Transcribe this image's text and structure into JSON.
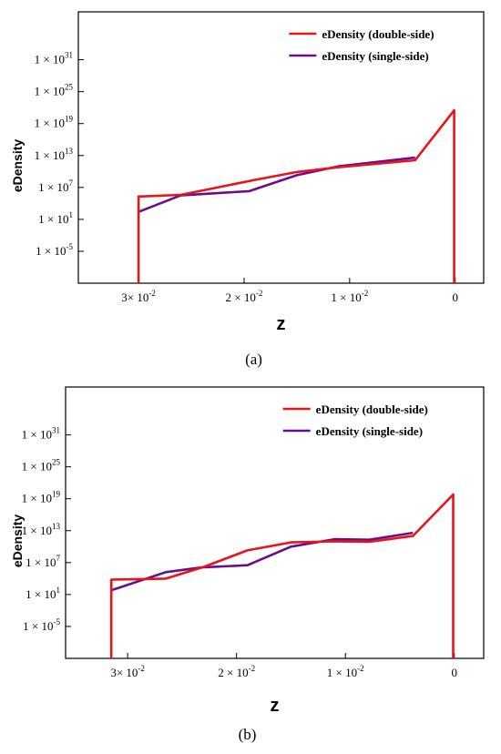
{
  "chart_data": [
    {
      "type": "line",
      "caption": "(a)",
      "xlabel": "z",
      "ylabel": "eDensity",
      "x_reversed": true,
      "y_scale": "log",
      "xlim": [
        0.0357,
        -0.0027
      ],
      "ylim_log10": [
        -11,
        40
      ],
      "xticks": [
        {
          "value": 0.03,
          "mant": "3× 10",
          "exp": "-2"
        },
        {
          "value": 0.02,
          "mant": "2 × 10",
          "exp": "-2"
        },
        {
          "value": 0.01,
          "mant": "1 × 10",
          "exp": "-2"
        },
        {
          "value": 0,
          "mant": "0",
          "exp": ""
        }
      ],
      "yticks": [
        {
          "log": 31,
          "mant": "1 × 10",
          "exp": "31"
        },
        {
          "log": 25,
          "mant": "1 × 10",
          "exp": "25"
        },
        {
          "log": 19,
          "mant": "1 × 10",
          "exp": "19"
        },
        {
          "log": 13,
          "mant": "1 × 10",
          "exp": "13"
        },
        {
          "log": 7,
          "mant": "1 × 10",
          "exp": "7"
        },
        {
          "log": 1,
          "mant": "1 × 10",
          "exp": "1"
        },
        {
          "log": -5,
          "mant": "1 × 10",
          "exp": "-5"
        }
      ],
      "series": [
        {
          "name": "eDensity  (double-side)",
          "color": "#e8141c",
          "x": [
            0.03,
            0.03,
            0.026,
            0.019,
            0.015,
            0.011,
            0.0038,
            0.0001,
            0.0001
          ],
          "log10_y": [
            -11,
            5.3,
            5.6,
            8.4,
            9.9,
            10.8,
            12.1,
            21.5,
            -11
          ]
        },
        {
          "name": "eDensity  (single-side)",
          "color": "#6a0d8c",
          "x": [
            0.03,
            0.026,
            0.022,
            0.0195,
            0.015,
            0.011,
            0.0038
          ],
          "log10_y": [
            2.4,
            5.5,
            6.0,
            6.3,
            9.3,
            11.0,
            12.6
          ]
        }
      ]
    },
    {
      "type": "line",
      "caption": "(b)",
      "xlabel": "z",
      "ylabel": "eDensity",
      "x_reversed": true,
      "y_scale": "log",
      "xlim": [
        0.0357,
        -0.0027
      ],
      "ylim_log10": [
        -11,
        40
      ],
      "xticks": [
        {
          "value": 0.03,
          "mant": "3× 10",
          "exp": "-2"
        },
        {
          "value": 0.02,
          "mant": "2 × 10",
          "exp": "-2"
        },
        {
          "value": 0.01,
          "mant": "1 × 10",
          "exp": "-2"
        },
        {
          "value": 0,
          "mant": "0",
          "exp": ""
        }
      ],
      "yticks": [
        {
          "log": 31,
          "mant": "1 × 10",
          "exp": "31"
        },
        {
          "log": 25,
          "mant": "1 × 10",
          "exp": "25"
        },
        {
          "log": 19,
          "mant": "1 × 10",
          "exp": "19"
        },
        {
          "log": 13,
          "mant": "1 × 10",
          "exp": "13"
        },
        {
          "log": 7,
          "mant": "1 × 10",
          "exp": "7"
        },
        {
          "log": 1,
          "mant": "1 × 10",
          "exp": "1"
        },
        {
          "log": -5,
          "mant": "1 × 10",
          "exp": "-5"
        }
      ],
      "series": [
        {
          "name": "eDensity  (double-side)",
          "color": "#e8141c",
          "x": [
            0.0315,
            0.0315,
            0.0265,
            0.023,
            0.019,
            0.015,
            0.011,
            0.0078,
            0.0038,
            0.0001,
            0.0001
          ],
          "log10_y": [
            -11,
            3.8,
            4.0,
            6.2,
            9.3,
            10.8,
            11.0,
            10.9,
            12.0,
            19.8,
            -11
          ]
        },
        {
          "name": "eDensity  (single-side)",
          "color": "#6a0d8c",
          "x": [
            0.0315,
            0.0265,
            0.0232,
            0.019,
            0.015,
            0.011,
            0.0078,
            0.0038
          ],
          "log10_y": [
            1.8,
            5.2,
            6.1,
            6.5,
            10.0,
            11.4,
            11.3,
            12.6
          ]
        }
      ]
    }
  ]
}
